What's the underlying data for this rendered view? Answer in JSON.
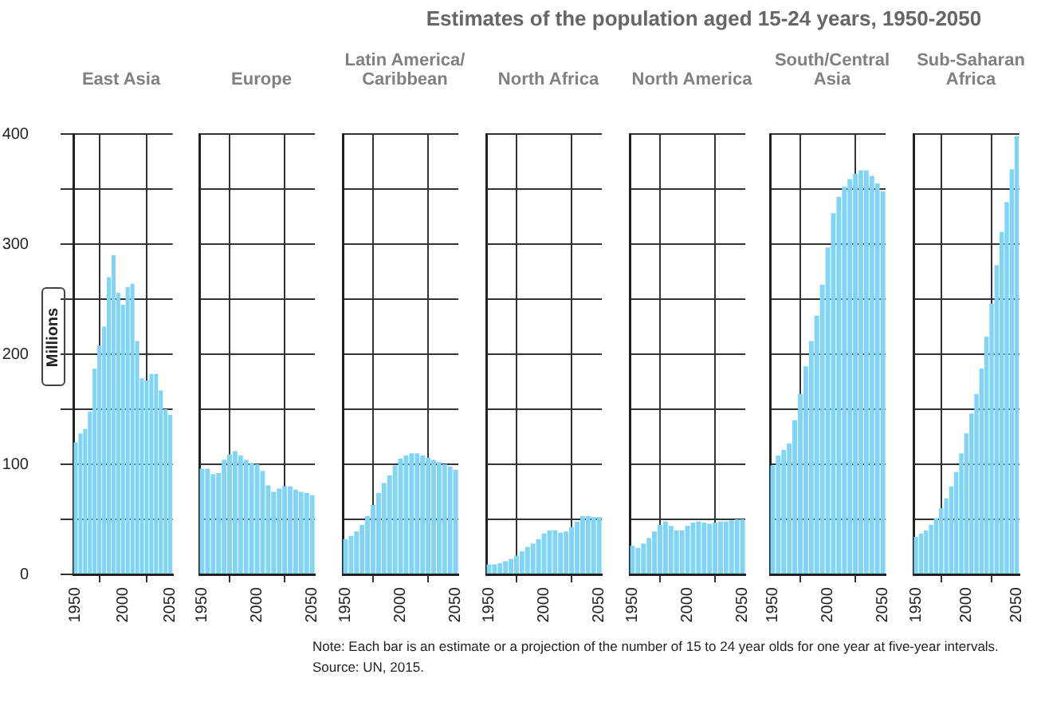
{
  "chart_data": [
    {
      "type": "bar",
      "title": "East Asia",
      "ylabel": "Millions",
      "color": "#80d4f6",
      "x": [
        1950,
        1955,
        1960,
        1965,
        1970,
        1975,
        1980,
        1985,
        1990,
        1995,
        2000,
        2005,
        2010,
        2015,
        2020,
        2025,
        2030,
        2035,
        2040,
        2045,
        2050
      ],
      "values": [
        120,
        128,
        132,
        148,
        187,
        208,
        225,
        270,
        290,
        256,
        245,
        261,
        264,
        212,
        178,
        176,
        182,
        182,
        167,
        150,
        145
      ],
      "xlim": [
        1947.5,
        2052.5
      ],
      "xticks": [
        1950,
        2000,
        2050
      ],
      "ylim": [
        0,
        400
      ],
      "yticks": [
        0,
        {
          "value": 50,
          "label": null
        },
        100,
        {
          "value": 150,
          "label": null
        },
        200,
        {
          "value": 250,
          "label": null
        },
        300,
        {
          "value": 350,
          "label": null
        },
        400
      ],
      "grid": true,
      "annotations": [
        "Estimates of the population aged 15-24 years, 1950-2050",
        "Note: Each bar is an estimate or a projection of the number of 15 to 24 year olds for one year at five-year intervals.",
        "Source: UN, 2015."
      ]
    },
    {
      "type": "bar",
      "title": "Europe",
      "color": "#80d4f6",
      "x": [
        1950,
        1955,
        1960,
        1965,
        1970,
        1975,
        1980,
        1985,
        1990,
        1995,
        2000,
        2005,
        2010,
        2015,
        2020,
        2025,
        2030,
        2035,
        2040,
        2045,
        2050
      ],
      "values": [
        96,
        96,
        91,
        92,
        104,
        109,
        112,
        108,
        104,
        101,
        100,
        94,
        81,
        75,
        78,
        80,
        80,
        77,
        75,
        74,
        72
      ],
      "xlim": [
        1947.5,
        2052.5
      ],
      "xticks": [
        1950,
        2000,
        2050
      ],
      "ylim": [
        0,
        400
      ],
      "yticks": [
        0,
        {
          "value": 50,
          "label": null
        },
        100,
        {
          "value": 150,
          "label": null
        },
        200,
        {
          "value": 250,
          "label": null
        },
        300,
        {
          "value": 350,
          "label": null
        },
        400
      ],
      "grid": true,
      "tick_labels": "x"
    },
    {
      "type": "bar",
      "title": "Latin America/Caribbean",
      "color": "#80d4f6",
      "x": [
        1950,
        1955,
        1960,
        1965,
        1970,
        1975,
        1980,
        1985,
        1990,
        1995,
        2000,
        2005,
        2010,
        2015,
        2020,
        2025,
        2030,
        2035,
        2040,
        2045,
        2050
      ],
      "values": [
        32,
        35,
        39,
        45,
        53,
        63,
        74,
        83,
        90,
        99,
        105,
        108,
        110,
        110,
        108,
        106,
        104,
        102,
        100,
        98,
        95
      ],
      "xlim": [
        1947.5,
        2052.5
      ],
      "xticks": [
        1950,
        2000,
        2050
      ],
      "ylim": [
        0,
        400
      ],
      "yticks": [
        0,
        {
          "value": 50,
          "label": null
        },
        100,
        {
          "value": 150,
          "label": null
        },
        200,
        {
          "value": 250,
          "label": null
        },
        300,
        {
          "value": 350,
          "label": null
        },
        400
      ],
      "grid": true,
      "tick_labels": "x"
    },
    {
      "type": "bar",
      "title": "North Africa",
      "color": "#80d4f6",
      "x": [
        1950,
        1955,
        1960,
        1965,
        1970,
        1975,
        1980,
        1985,
        1990,
        1995,
        2000,
        2005,
        2010,
        2015,
        2020,
        2025,
        2030,
        2035,
        2040,
        2045,
        2050
      ],
      "values": [
        9,
        9,
        10,
        12,
        14,
        17,
        21,
        25,
        28,
        32,
        37,
        40,
        40,
        38,
        39,
        43,
        48,
        53,
        53,
        52,
        52
      ],
      "xlim": [
        1947.5,
        2052.5
      ],
      "xticks": [
        1950,
        2000,
        2050
      ],
      "ylim": [
        0,
        400
      ],
      "yticks": [
        0,
        {
          "value": 50,
          "label": null
        },
        100,
        {
          "value": 150,
          "label": null
        },
        200,
        {
          "value": 250,
          "label": null
        },
        300,
        {
          "value": 350,
          "label": null
        },
        400
      ],
      "grid": true,
      "tick_labels": "x"
    },
    {
      "type": "bar",
      "title": "North America",
      "color": "#80d4f6",
      "x": [
        1950,
        1955,
        1960,
        1965,
        1970,
        1975,
        1980,
        1985,
        1990,
        1995,
        2000,
        2005,
        2010,
        2015,
        2020,
        2025,
        2030,
        2035,
        2040,
        2045,
        2050
      ],
      "values": [
        26,
        24,
        28,
        33,
        39,
        45,
        48,
        44,
        40,
        40,
        44,
        47,
        48,
        47,
        46,
        47,
        48,
        48,
        49,
        50,
        50
      ],
      "xlim": [
        1947.5,
        2052.5
      ],
      "xticks": [
        1950,
        2000,
        2050
      ],
      "ylim": [
        0,
        400
      ],
      "yticks": [
        0,
        {
          "value": 50,
          "label": null
        },
        100,
        {
          "value": 150,
          "label": null
        },
        200,
        {
          "value": 250,
          "label": null
        },
        300,
        {
          "value": 350,
          "label": null
        },
        400
      ],
      "grid": true,
      "tick_labels": "x"
    },
    {
      "type": "bar",
      "title": "South/Central Asia",
      "color": "#80d4f6",
      "x": [
        1950,
        1955,
        1960,
        1965,
        1970,
        1975,
        1980,
        1985,
        1990,
        1995,
        2000,
        2005,
        2010,
        2015,
        2020,
        2025,
        2030,
        2035,
        2040,
        2045,
        2050
      ],
      "values": [
        99,
        108,
        113,
        119,
        140,
        164,
        189,
        212,
        235,
        263,
        297,
        328,
        343,
        352,
        359,
        364,
        367,
        367,
        362,
        355,
        348
      ],
      "xlim": [
        1947.5,
        2052.5
      ],
      "xticks": [
        1950,
        2000,
        2050
      ],
      "ylim": [
        0,
        400
      ],
      "yticks": [
        0,
        {
          "value": 50,
          "label": null
        },
        100,
        {
          "value": 150,
          "label": null
        },
        200,
        {
          "value": 250,
          "label": null
        },
        300,
        {
          "value": 350,
          "label": null
        },
        400
      ],
      "grid": true,
      "tick_labels": "x"
    },
    {
      "type": "bar",
      "title": "Sub-Saharan Africa",
      "color": "#80d4f6",
      "x": [
        1950,
        1955,
        1960,
        1965,
        1970,
        1975,
        1980,
        1985,
        1990,
        1995,
        2000,
        2005,
        2010,
        2015,
        2020,
        2025,
        2030,
        2035,
        2040,
        2045,
        2050
      ],
      "values": [
        34,
        37,
        40,
        45,
        51,
        60,
        69,
        80,
        93,
        110,
        128,
        146,
        164,
        187,
        216,
        246,
        281,
        311,
        338,
        368,
        398
      ],
      "xlim": [
        1947.5,
        2052.5
      ],
      "xticks": [
        1950,
        2000,
        2050
      ],
      "ylim": [
        0,
        400
      ],
      "yticks": [
        0,
        {
          "value": 50,
          "label": null
        },
        100,
        {
          "value": 150,
          "label": null
        },
        200,
        {
          "value": 250,
          "label": null
        },
        300,
        {
          "value": 350,
          "label": null
        },
        400
      ],
      "grid": true,
      "tick_labels": "x"
    }
  ]
}
